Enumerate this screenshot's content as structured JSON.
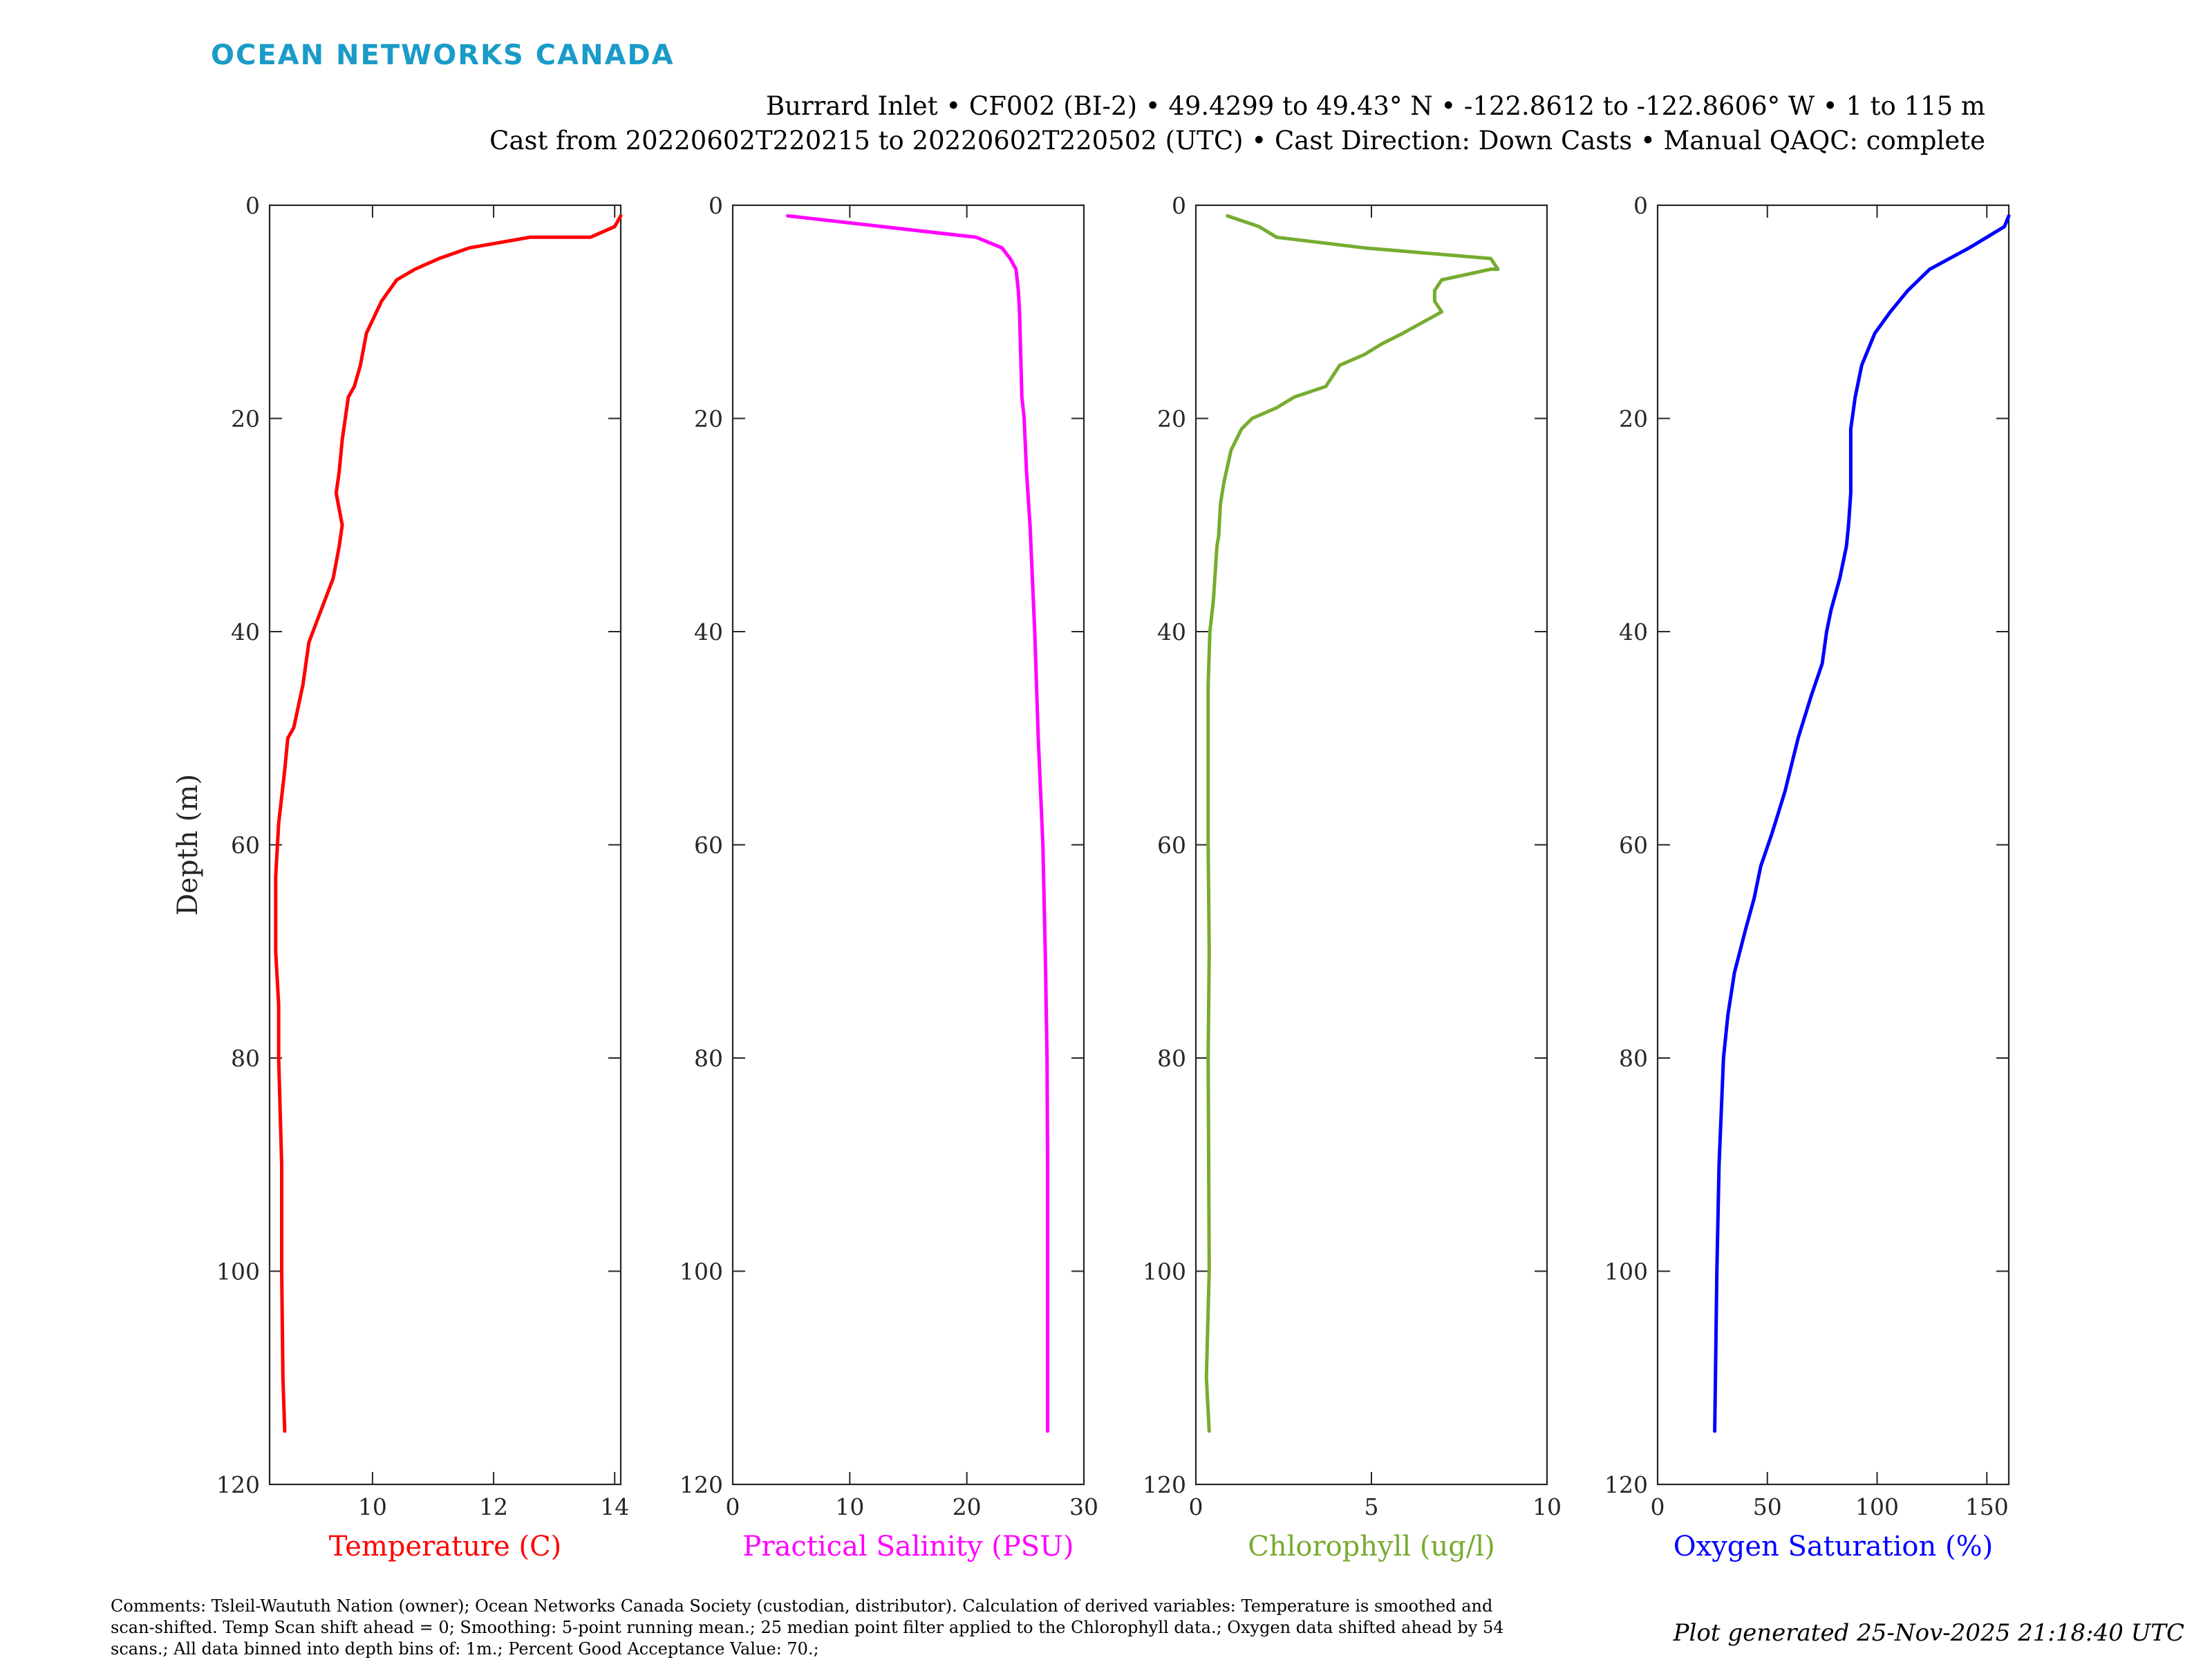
{
  "brand": {
    "name": "OCEAN NETWORKS CANADA",
    "color": "#1a9bc8"
  },
  "header": {
    "line1": "Burrard Inlet • CF002 (BI-2) • 49.4299 to 49.43° N • -122.8612 to -122.8606° W • 1 to 115 m",
    "line2": "Cast from 20220602T220215 to 20220602T220502 (UTC) • Cast Direction: Down Casts • Manual QAQC: complete"
  },
  "footer": {
    "comments_line1": "Comments: Tsleil-Waututh Nation (owner); Ocean Networks Canada Society (custodian, distributor). Calculation of derived variables: Temperature is smoothed and",
    "comments_line2": "scan-shifted. Temp Scan shift ahead = 0; Smoothing: 5-point running mean.; 25 median point filter applied to the Chlorophyll data.; Oxygen data shifted ahead by 54",
    "comments_line3": "scans.; All data binned into depth bins of: 1m.; Percent Good Acceptance Value: 70.;",
    "generated": "Plot generated 25-Nov-2025 21:18:40 UTC"
  },
  "chart_data": [
    {
      "type": "line",
      "ylabel": "Depth (m)",
      "xlabel": "Temperature (C)",
      "color": "#ff0000",
      "xlim": [
        8.3,
        14.1
      ],
      "ylim": [
        0,
        120
      ],
      "y_reversed": true,
      "xticks": [
        10,
        12,
        14
      ],
      "yticks": [
        0,
        20,
        40,
        60,
        80,
        100,
        120
      ],
      "series": [
        {
          "x": [
            14.1,
            14.0,
            13.6,
            12.6,
            11.6,
            11.1,
            10.7,
            10.4,
            10.15,
            9.9,
            9.8,
            9.7,
            9.6,
            9.55,
            9.5,
            9.45,
            9.4,
            9.5,
            9.45,
            9.35,
            9.15,
            8.95,
            8.85,
            8.7,
            8.6,
            8.55,
            8.45,
            8.4,
            8.4,
            8.4,
            8.45,
            8.45,
            8.5,
            8.5,
            8.52,
            8.55
          ],
          "y": [
            1,
            2,
            3,
            3,
            4,
            5,
            6,
            7,
            9,
            12,
            15,
            17,
            18,
            20,
            22,
            25,
            27,
            30,
            32,
            35,
            38,
            41,
            45,
            49,
            50,
            53,
            58,
            63,
            68,
            70,
            75,
            80,
            90,
            100,
            110,
            115
          ]
        }
      ]
    },
    {
      "type": "line",
      "ylabel": "",
      "xlabel": "Practical Salinity (PSU)",
      "color": "#ff00ff",
      "xlim": [
        0,
        30
      ],
      "ylim": [
        0,
        120
      ],
      "y_reversed": true,
      "xticks": [
        0,
        10,
        20,
        30
      ],
      "yticks": [
        0,
        20,
        40,
        60,
        80,
        100,
        120
      ],
      "series": [
        {
          "x": [
            4.7,
            20.8,
            23.0,
            23.7,
            24.2,
            24.4,
            24.5,
            24.6,
            24.7,
            24.9,
            25.1,
            25.4,
            25.8,
            26.1,
            26.5,
            26.7,
            26.85,
            26.9,
            26.9,
            26.9
          ],
          "y": [
            1,
            3,
            4,
            5,
            6,
            8,
            10,
            14,
            18,
            20,
            25,
            30,
            40,
            50,
            60,
            70,
            80,
            90,
            100,
            115
          ]
        }
      ]
    },
    {
      "type": "line",
      "ylabel": "",
      "xlabel": "Chlorophyll (ug/l)",
      "color": "#77ac30",
      "xlim": [
        0,
        10
      ],
      "ylim": [
        0,
        120
      ],
      "y_reversed": true,
      "xticks": [
        0,
        5,
        10
      ],
      "yticks": [
        0,
        20,
        40,
        60,
        80,
        100,
        120
      ],
      "series": [
        {
          "x": [
            0.9,
            1.8,
            2.3,
            4.8,
            8.4,
            8.6,
            8.4,
            7.0,
            6.8,
            6.8,
            7.0,
            5.9,
            5.3,
            4.8,
            4.1,
            3.9,
            3.7,
            2.8,
            2.3,
            1.6,
            1.3,
            1.0,
            0.8,
            0.7,
            0.65,
            0.6,
            0.5,
            0.4,
            0.35,
            0.35,
            0.35,
            0.38,
            0.35,
            0.38,
            0.3,
            0.38
          ],
          "y": [
            1,
            2,
            3,
            4,
            5,
            6,
            6,
            7,
            8,
            9,
            10,
            12,
            13,
            14,
            15,
            16,
            17,
            18,
            19,
            20,
            21,
            23,
            26,
            28,
            31,
            32,
            37,
            40,
            45,
            50,
            60,
            70,
            80,
            100,
            110,
            115
          ]
        }
      ]
    },
    {
      "type": "line",
      "ylabel": "",
      "xlabel": "Oxygen Saturation (%)",
      "color": "#0000ff",
      "xlim": [
        0,
        160
      ],
      "ylim": [
        0,
        120
      ],
      "y_reversed": true,
      "xticks": [
        0,
        50,
        100,
        150
      ],
      "yticks": [
        0,
        20,
        40,
        60,
        80,
        100,
        120
      ],
      "series": [
        {
          "x": [
            160,
            158,
            150,
            142,
            133,
            124,
            114,
            106,
            99,
            93,
            90,
            88,
            88,
            88,
            87,
            86,
            83,
            79,
            77,
            75,
            70,
            64,
            58,
            52,
            47,
            44,
            40,
            35,
            32,
            30,
            28,
            27,
            26
          ],
          "y": [
            1,
            2,
            3,
            4,
            5,
            6,
            8,
            10,
            12,
            15,
            18,
            21,
            24,
            27,
            30,
            32,
            35,
            38,
            40,
            43,
            46,
            50,
            55,
            59,
            62,
            65,
            68,
            72,
            76,
            80,
            90,
            100,
            115
          ]
        }
      ]
    }
  ]
}
